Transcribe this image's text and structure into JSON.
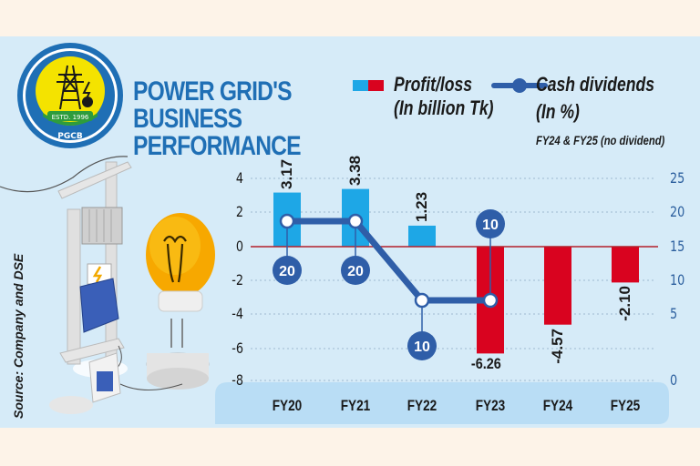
{
  "header": {
    "title_lines": [
      "POWER GRID'S",
      "BUSINESS",
      "PERFORMANCE"
    ],
    "logo": {
      "name": "pgcb-logo",
      "text_estd": "ESTD. 1996",
      "text_abbr": "PGCB"
    }
  },
  "legend": {
    "profit_loss": {
      "label_line1": "Profit/loss",
      "label_line2": "(In billion Tk)",
      "colors": [
        "#1ea7e6",
        "#d9031f"
      ]
    },
    "cash_dividends": {
      "label_line1": "Cash dividends",
      "label_line2": "(In %)",
      "note": "FY24 & FY25 (no dividend)",
      "color": "#2f5ea8"
    }
  },
  "source": "Source: Company and DSE",
  "colors": {
    "positive_bar": "#1ea7e6",
    "negative_bar": "#d9031f",
    "dividend_line": "#2f5ea8",
    "title": "#1f6fb5",
    "panel_bg": "#d6ebf8",
    "page_bg": "#fdf3e8",
    "zero_line": "#b3202a",
    "xaxis_band": "#b9ddf5"
  },
  "chart_data": {
    "type": "bar+line",
    "title": "POWER GRID'S BUSINESS PERFORMANCE",
    "categories": [
      "FY20",
      "FY21",
      "FY22",
      "FY23",
      "FY24",
      "FY25"
    ],
    "series": [
      {
        "name": "Profit/loss (In billion Tk)",
        "type": "bar",
        "axis": "left",
        "values": [
          3.17,
          3.38,
          1.23,
          -6.26,
          -4.57,
          -2.1
        ],
        "labels": [
          "3.17",
          "3.38",
          "1.23",
          "-6.26",
          "-4.57",
          "-2.10"
        ]
      },
      {
        "name": "Cash dividends (In %)",
        "type": "line",
        "axis": "right",
        "values": [
          20,
          20,
          10,
          10,
          null,
          null
        ],
        "labels": [
          "20",
          "20",
          "10",
          "10",
          "",
          ""
        ]
      }
    ],
    "left_axis": {
      "ticks": [
        "4",
        "2",
        "0",
        "-2",
        "-4",
        "-6",
        "-8"
      ],
      "ylim": [
        -8,
        4
      ]
    },
    "right_axis": {
      "ticks": [
        "25",
        "20",
        "15",
        "10",
        "5",
        "0"
      ],
      "ylim": [
        0,
        25
      ]
    },
    "annotation": "FY24 & FY25 (no dividend)",
    "grid": "dashed horizontal",
    "legend_position": "top"
  }
}
